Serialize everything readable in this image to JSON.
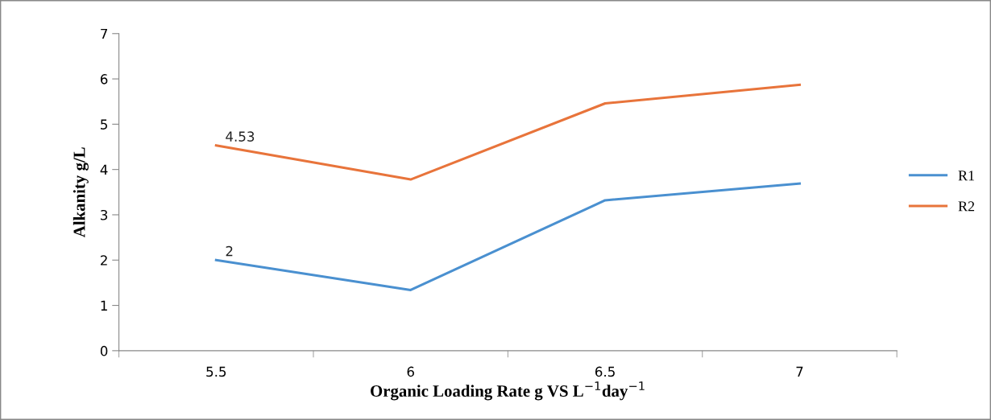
{
  "chart_data": {
    "type": "line",
    "xlabel": "Organic Loading Rate g VS L$^{−1}$day$^{−1}$",
    "ylabel": "Alkanity g/L",
    "categories": [
      "5.5",
      "6",
      "6.5",
      "7"
    ],
    "series": [
      {
        "name": "R1",
        "color": "#4a90d0",
        "values": [
          2,
          1.34,
          3.32,
          3.69
        ],
        "value_labels": [
          "2",
          null,
          null,
          null
        ]
      },
      {
        "name": "R2",
        "color": "#e8743b",
        "values": [
          4.53,
          3.78,
          5.46,
          5.87
        ],
        "value_labels": [
          "4.53",
          null,
          null,
          null
        ]
      }
    ],
    "ylim": [
      0,
      7
    ],
    "yticks": [
      0,
      1,
      2,
      3,
      4,
      5,
      6,
      7
    ],
    "grid": false,
    "legend": "right",
    "marker": "none",
    "line_style": "solid"
  }
}
